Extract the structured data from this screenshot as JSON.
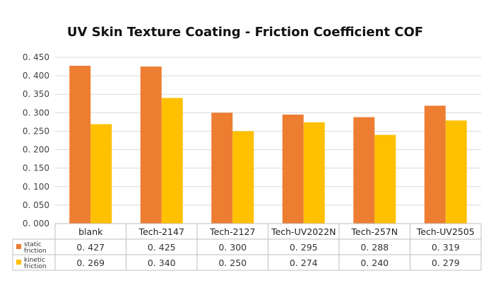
{
  "chart_data": {
    "type": "bar",
    "title": "UV Skin Texture Coating - Friction Coefficient COF",
    "categories": [
      "blank",
      "Tech-2147",
      "Tech-2127",
      "Tech-UV2022N",
      "Tech-257N",
      "Tech-UV2505"
    ],
    "series": [
      {
        "name": "static friction",
        "legend_lines": [
          "static",
          "friction"
        ],
        "color": "#ED7D31",
        "values": [
          0.427,
          0.425,
          0.3,
          0.295,
          0.288,
          0.319
        ],
        "labels": [
          "0. 427",
          "0. 425",
          "0. 300",
          "0. 295",
          "0. 288",
          "0. 319"
        ]
      },
      {
        "name": "kinetic friction",
        "legend_lines": [
          "kinetic",
          "friction"
        ],
        "color": "#FFC000",
        "values": [
          0.269,
          0.34,
          0.25,
          0.274,
          0.24,
          0.279
        ],
        "labels": [
          "0. 269",
          "0. 340",
          "0. 250",
          "0. 274",
          "0. 240",
          "0. 279"
        ]
      }
    ],
    "ylim": [
      0,
      0.45
    ],
    "y_ticks": [
      0,
      0.05,
      0.1,
      0.15,
      0.2,
      0.25,
      0.3,
      0.35,
      0.4,
      0.45
    ],
    "y_tick_labels": [
      "0. 000",
      "0. 050",
      "0. 100",
      "0. 150",
      "0. 200",
      "0. 250",
      "0. 300",
      "0. 350",
      "0. 400",
      "0. 450"
    ],
    "grid": true,
    "legend": "data-table"
  }
}
